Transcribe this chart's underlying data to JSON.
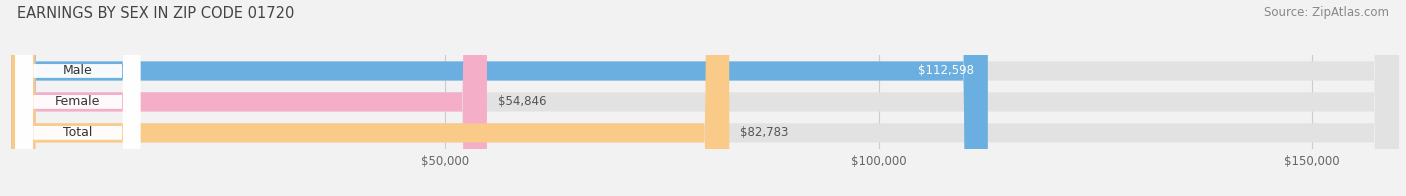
{
  "title": "EARNINGS BY SEX IN ZIP CODE 01720",
  "source_text": "Source: ZipAtlas.com",
  "categories": [
    "Male",
    "Female",
    "Total"
  ],
  "values": [
    112598,
    54846,
    82783
  ],
  "bar_colors": [
    "#6aafe0",
    "#f5aec8",
    "#f9ca88"
  ],
  "label_inside": [
    true,
    false,
    false
  ],
  "x_min": 0,
  "x_max": 160000,
  "x_ticks": [
    50000,
    100000,
    150000
  ],
  "x_tick_labels": [
    "$50,000",
    "$100,000",
    "$150,000"
  ],
  "bg_color": "#f2f2f2",
  "bar_bg_color": "#e2e2e2",
  "bar_height": 0.62,
  "title_fontsize": 10.5,
  "source_fontsize": 8.5,
  "label_fontsize": 8.5,
  "tick_fontsize": 8.5,
  "pill_bg_color": "#ffffff"
}
